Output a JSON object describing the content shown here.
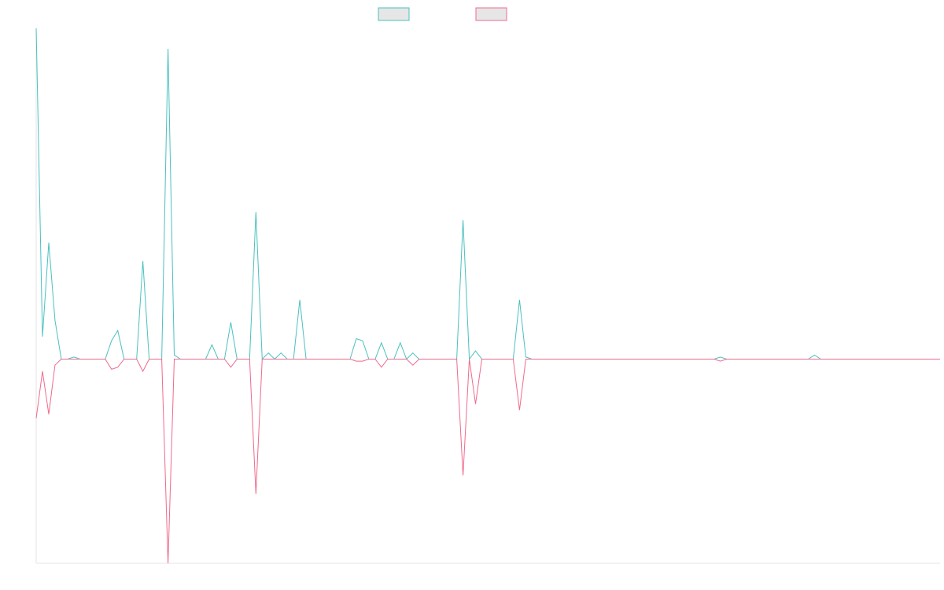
{
  "chart_data": {
    "type": "line",
    "title": "",
    "xlabel": "",
    "ylabel": "",
    "legend_position": "top-center",
    "grid": false,
    "ylim": [
      -100,
      162
    ],
    "xlim": [
      0,
      144
    ],
    "series": [
      {
        "color": "#4bc0c0",
        "legend_fill": "#e6e6e6",
        "points": [
          [
            0,
            162
          ],
          [
            1,
            11
          ],
          [
            2,
            57
          ],
          [
            3,
            19
          ],
          [
            4,
            0
          ],
          [
            5,
            0
          ],
          [
            6,
            1
          ],
          [
            7,
            0
          ],
          [
            10,
            0
          ],
          [
            11,
            0
          ],
          [
            12,
            9
          ],
          [
            13,
            14
          ],
          [
            14,
            0
          ],
          [
            16,
            0
          ],
          [
            17,
            48
          ],
          [
            18,
            0
          ],
          [
            19,
            0
          ],
          [
            20,
            0
          ],
          [
            21,
            152
          ],
          [
            22,
            2
          ],
          [
            23,
            0
          ],
          [
            27,
            0
          ],
          [
            28,
            7
          ],
          [
            29,
            0
          ],
          [
            30,
            0
          ],
          [
            31,
            18
          ],
          [
            32,
            0
          ],
          [
            34,
            0
          ],
          [
            35,
            72
          ],
          [
            36,
            0
          ],
          [
            37,
            3
          ],
          [
            38,
            0
          ],
          [
            39,
            3
          ],
          [
            40,
            0
          ],
          [
            41,
            0
          ],
          [
            42,
            29
          ],
          [
            43,
            0
          ],
          [
            50,
            0
          ],
          [
            51,
            10
          ],
          [
            52,
            9
          ],
          [
            53,
            0
          ],
          [
            54,
            0
          ],
          [
            55,
            8
          ],
          [
            56,
            0
          ],
          [
            57,
            0
          ],
          [
            58,
            8
          ],
          [
            59,
            0
          ],
          [
            60,
            3
          ],
          [
            61,
            0
          ],
          [
            67,
            0
          ],
          [
            68,
            68
          ],
          [
            69,
            0
          ],
          [
            70,
            4
          ],
          [
            71,
            0
          ],
          [
            76,
            0
          ],
          [
            77,
            29
          ],
          [
            78,
            1
          ],
          [
            79,
            0
          ],
          [
            108,
            0
          ],
          [
            109,
            1
          ],
          [
            110,
            0
          ],
          [
            123,
            0
          ],
          [
            124,
            2
          ],
          [
            125,
            0
          ],
          [
            144,
            0
          ]
        ]
      },
      {
        "color": "#f06a8c",
        "legend_fill": "#e6e6e6",
        "points": [
          [
            0,
            -29
          ],
          [
            1,
            -6
          ],
          [
            2,
            -27
          ],
          [
            3,
            -3
          ],
          [
            4,
            0
          ],
          [
            5,
            0
          ],
          [
            6,
            0
          ],
          [
            7,
            0
          ],
          [
            10,
            0
          ],
          [
            11,
            0
          ],
          [
            12,
            -5
          ],
          [
            13,
            -4
          ],
          [
            14,
            0
          ],
          [
            16,
            0
          ],
          [
            17,
            -6
          ],
          [
            18,
            0
          ],
          [
            19,
            0
          ],
          [
            20,
            0
          ],
          [
            21,
            -100
          ],
          [
            22,
            0
          ],
          [
            23,
            0
          ],
          [
            27,
            0
          ],
          [
            28,
            0
          ],
          [
            29,
            0
          ],
          [
            30,
            0
          ],
          [
            31,
            -4
          ],
          [
            32,
            0
          ],
          [
            34,
            0
          ],
          [
            35,
            -66
          ],
          [
            36,
            0
          ],
          [
            37,
            0
          ],
          [
            38,
            0
          ],
          [
            39,
            0
          ],
          [
            40,
            0
          ],
          [
            41,
            0
          ],
          [
            42,
            0
          ],
          [
            43,
            0
          ],
          [
            50,
            0
          ],
          [
            51,
            -1
          ],
          [
            52,
            -1
          ],
          [
            53,
            0
          ],
          [
            54,
            0
          ],
          [
            55,
            -4
          ],
          [
            56,
            0
          ],
          [
            57,
            0
          ],
          [
            58,
            0
          ],
          [
            59,
            0
          ],
          [
            60,
            -3
          ],
          [
            61,
            0
          ],
          [
            67,
            0
          ],
          [
            68,
            -57
          ],
          [
            69,
            0
          ],
          [
            70,
            -22
          ],
          [
            71,
            0
          ],
          [
            76,
            0
          ],
          [
            77,
            -25
          ],
          [
            78,
            0
          ],
          [
            79,
            0
          ],
          [
            108,
            0
          ],
          [
            109,
            -1
          ],
          [
            110,
            0
          ],
          [
            123,
            0
          ],
          [
            124,
            0
          ],
          [
            125,
            0
          ],
          [
            144,
            0
          ]
        ]
      }
    ]
  }
}
